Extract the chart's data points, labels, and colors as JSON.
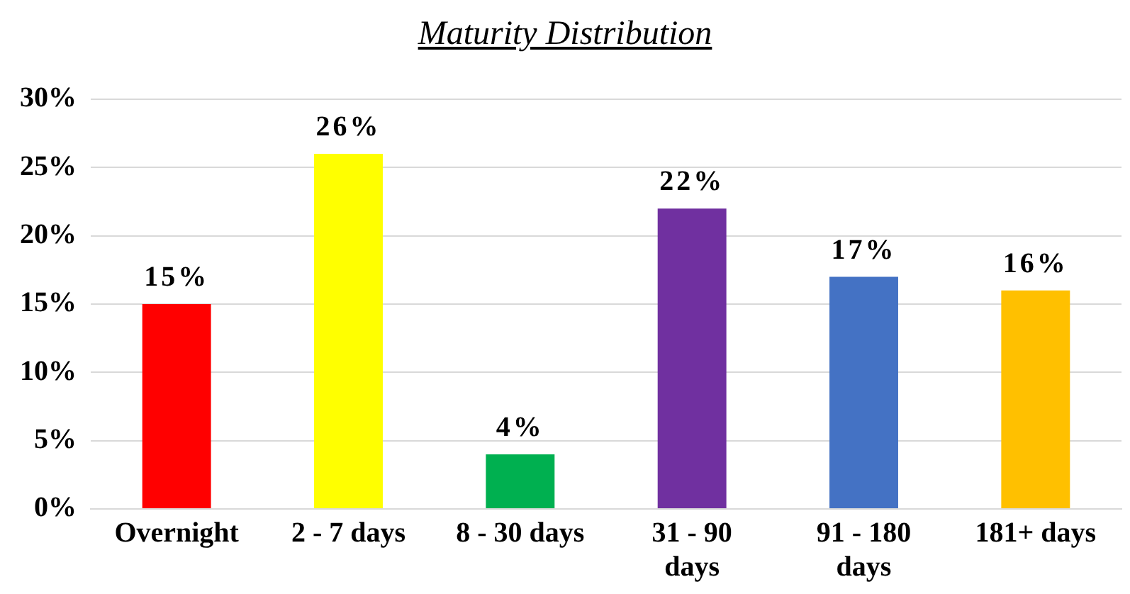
{
  "chart_data": {
    "type": "bar",
    "title": "Maturity Distribution",
    "categories": [
      "Overnight",
      "2 - 7 days",
      "8 - 30 days",
      "31 - 90 days",
      "91 - 180 days",
      "181+ days"
    ],
    "values": [
      15,
      26,
      4,
      22,
      17,
      16
    ],
    "colors": [
      "#ff0000",
      "#ffff00",
      "#00b050",
      "#7030a0",
      "#4472c4",
      "#ffc000"
    ],
    "value_labels": [
      "15%",
      "26%",
      "4%",
      "22%",
      "17%",
      "16%"
    ],
    "ylim": [
      0,
      30
    ],
    "yticks": [
      {
        "value": 0,
        "label": "0%"
      },
      {
        "value": 5,
        "label": "5%"
      },
      {
        "value": 10,
        "label": "10%"
      },
      {
        "value": 15,
        "label": "15%"
      },
      {
        "value": 20,
        "label": "20%"
      },
      {
        "value": 25,
        "label": "25%"
      },
      {
        "value": 30,
        "label": "30%"
      }
    ],
    "grid": "y",
    "legend": false
  }
}
